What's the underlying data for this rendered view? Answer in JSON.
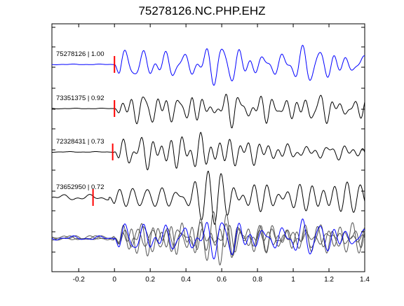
{
  "chart_data": {
    "type": "line",
    "title": "75278126.NC.PHP.EHZ",
    "xlabel": "",
    "ylabel": "",
    "xlim": [
      -0.35,
      1.4
    ],
    "xticks": [
      -0.2,
      0,
      0.2,
      0.4,
      0.6,
      0.8,
      1.0,
      1.2,
      1.4
    ],
    "xtick_labels": [
      "-0.2",
      "0",
      "0.2",
      "0.4",
      "0.6",
      "0.8",
      "1",
      "1.2",
      "1.4"
    ],
    "grid": false,
    "series": [
      {
        "name": "75278126 | 1.00",
        "color": "#0000ff",
        "pick_time": 0.0
      },
      {
        "name": "73351375 | 0.92",
        "color": "#000000",
        "pick_time": 0.0
      },
      {
        "name": "72328431 | 0.73",
        "color": "#000000",
        "pick_time": -0.01
      },
      {
        "name": "73652950 | 0.72",
        "color": "#000000",
        "pick_time": -0.12
      }
    ],
    "stack": {
      "name": "stacked overlay",
      "color": "#000000",
      "highlight_color": "#0000ff"
    },
    "pick_color": "#ff0000"
  }
}
